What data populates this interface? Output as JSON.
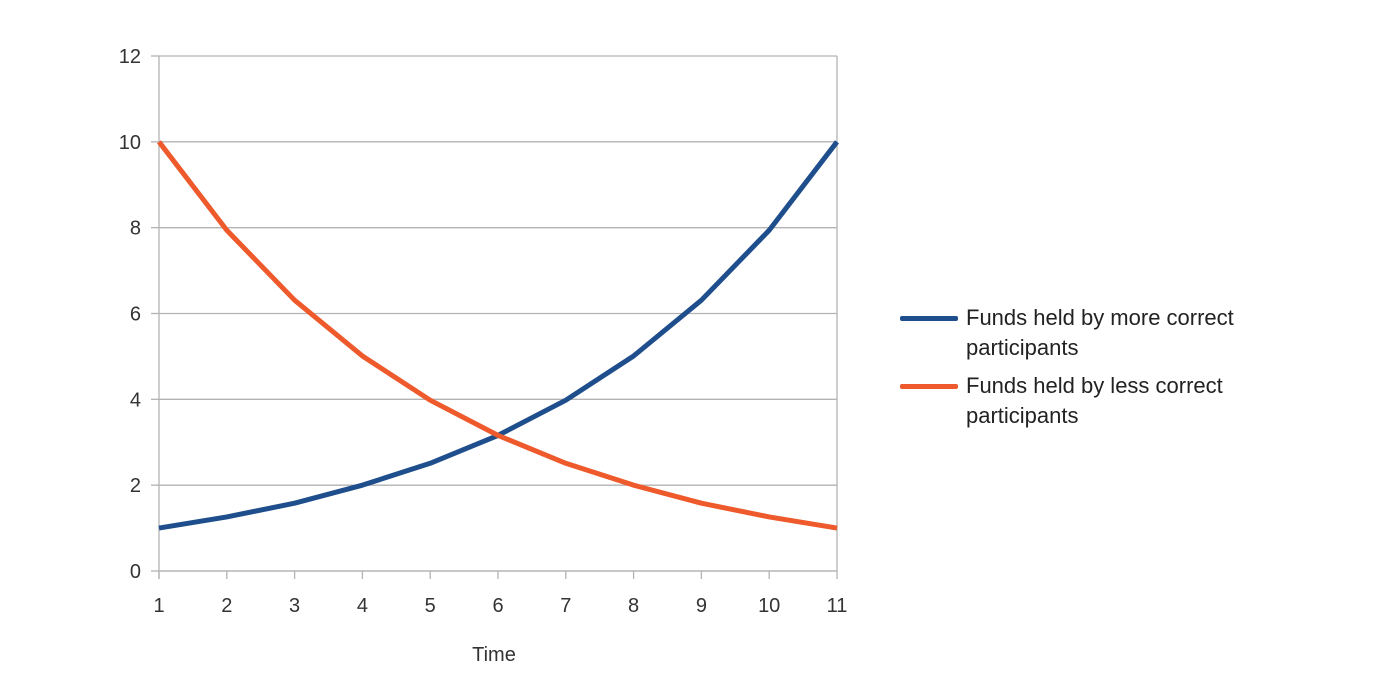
{
  "chart_data": {
    "type": "line",
    "x": [
      1,
      2,
      3,
      4,
      5,
      6,
      7,
      8,
      9,
      10,
      11
    ],
    "xlabel": "Time",
    "ylabel": "",
    "title": "",
    "ylim": [
      0,
      12
    ],
    "yticks": [
      0,
      2,
      4,
      6,
      8,
      10,
      12
    ],
    "grid": true,
    "legend_position": "right",
    "series": [
      {
        "name": "Funds held by more correct participants",
        "color": "#1f4e8c",
        "values": [
          1.0,
          1.26,
          1.58,
          2.0,
          2.51,
          3.16,
          3.98,
          5.01,
          6.31,
          7.94,
          10.0
        ]
      },
      {
        "name": "Funds held by less correct participants",
        "color": "#ee5a2c",
        "values": [
          10.0,
          7.94,
          6.31,
          5.01,
          3.98,
          3.16,
          2.51,
          2.0,
          1.58,
          1.26,
          1.0
        ]
      }
    ]
  }
}
